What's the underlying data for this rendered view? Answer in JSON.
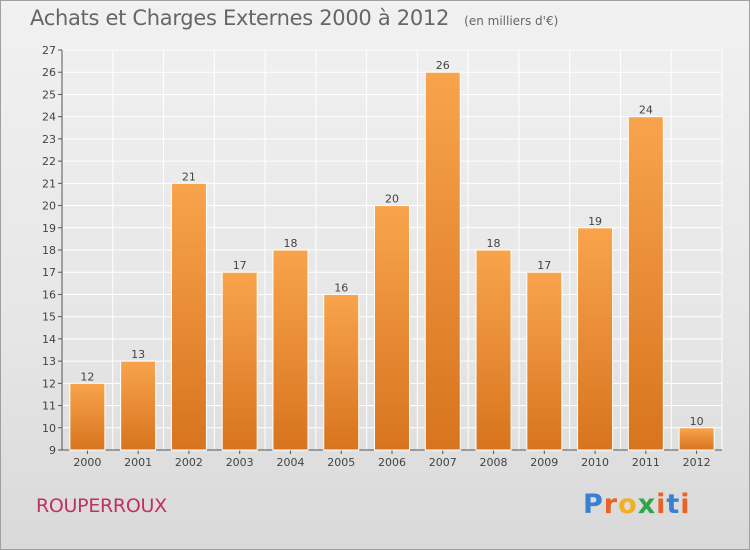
{
  "chart_data": {
    "type": "bar",
    "title": "Achats et Charges Externes 2000 à 2012",
    "subtitle": "(en milliers d'€)",
    "categories": [
      "2000",
      "2001",
      "2002",
      "2003",
      "2004",
      "2005",
      "2006",
      "2007",
      "2008",
      "2009",
      "2010",
      "2011",
      "2012"
    ],
    "values": [
      12,
      13,
      21,
      17,
      18,
      16,
      20,
      26,
      18,
      17,
      19,
      24,
      10
    ],
    "ylim": [
      9,
      27
    ],
    "yticks": [
      9,
      10,
      11,
      12,
      13,
      14,
      15,
      16,
      17,
      18,
      19,
      20,
      21,
      22,
      23,
      24,
      25,
      26,
      27
    ],
    "grid": true,
    "xlabel": "",
    "ylabel": "",
    "colors": {
      "bar_light": "#f8a44c",
      "bar_dark": "#d8741e",
      "grid": "#ffffff"
    }
  },
  "commune": "ROUPERROUX",
  "logo": {
    "letters": [
      "P",
      "r",
      "o",
      "x",
      "i",
      "t",
      "i"
    ],
    "colors": [
      "#3a7fd0",
      "#e8632a",
      "#f0b020",
      "#2fa64a",
      "#e8632a",
      "#3a7fd0",
      "#e8632a"
    ]
  }
}
